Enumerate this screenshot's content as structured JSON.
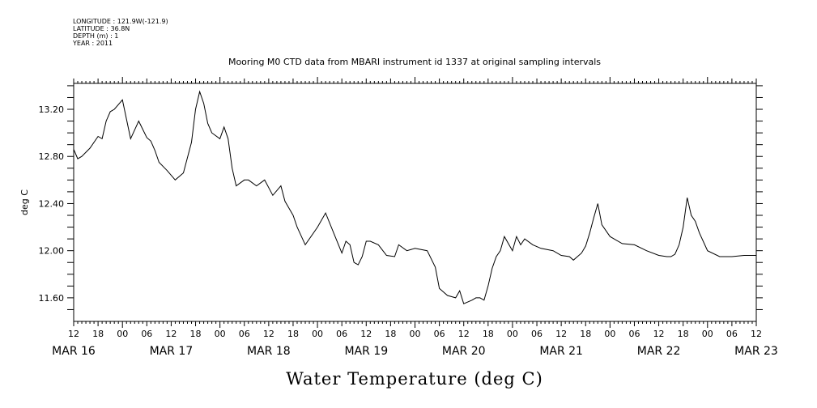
{
  "header": {
    "longitude": "LONGITUDE : 121.9W(-121.9)",
    "latitude": "LATITUDE : 36.8N",
    "depth": "DEPTH (m) : 1",
    "year": "YEAR : 2011"
  },
  "chart_data": {
    "type": "line",
    "title": "Mooring M0 CTD data from MBARI instrument id 1337 at original sampling intervals",
    "xlabel": "Water Temperature (deg C)",
    "ylabel": "deg C",
    "ylim": [
      11.4,
      13.42
    ],
    "yticks": [
      "11.60",
      "12.00",
      "12.40",
      "12.80",
      "13.20"
    ],
    "xlim_hours": [
      0,
      168
    ],
    "hour_tick_labels": [
      "12",
      "18",
      "00",
      "06",
      "12",
      "18",
      "00",
      "06",
      "12",
      "18",
      "00",
      "06",
      "12",
      "18",
      "00",
      "06",
      "12",
      "18",
      "00",
      "06",
      "12",
      "18",
      "00",
      "06",
      "12",
      "18",
      "00",
      "06",
      "12"
    ],
    "date_labels": [
      "MAR 16",
      "MAR 17",
      "MAR 18",
      "MAR 19",
      "MAR 20",
      "MAR 21",
      "MAR 22",
      "MAR 23"
    ],
    "grid": false,
    "series": [
      {
        "x": [
          "2011-03-16 12:00",
          "2011-03-16 13:00",
          "2011-03-16 14:00",
          "2011-03-16 16:00",
          "2011-03-16 18:00",
          "2011-03-16 19:00",
          "2011-03-16 20:00",
          "2011-03-16 21:00",
          "2011-03-16 22:00",
          "2011-03-17 00:00",
          "2011-03-17 02:00",
          "2011-03-17 04:00",
          "2011-03-17 06:00",
          "2011-03-17 07:00",
          "2011-03-17 08:00",
          "2011-03-17 09:00",
          "2011-03-17 11:00",
          "2011-03-17 13:00",
          "2011-03-17 15:00",
          "2011-03-17 17:00",
          "2011-03-17 18:00",
          "2011-03-17 19:00",
          "2011-03-17 20:00",
          "2011-03-17 21:00",
          "2011-03-17 22:00",
          "2011-03-18 00:00",
          "2011-03-18 01:00",
          "2011-03-18 02:00",
          "2011-03-18 03:00",
          "2011-03-18 04:00",
          "2011-03-18 06:00",
          "2011-03-18 07:00",
          "2011-03-18 09:00",
          "2011-03-18 11:00",
          "2011-03-18 13:00",
          "2011-03-18 15:00",
          "2011-03-18 16:00",
          "2011-03-18 18:00",
          "2011-03-18 19:00",
          "2011-03-18 21:00",
          "2011-03-19 00:00",
          "2011-03-19 02:00",
          "2011-03-19 04:00",
          "2011-03-19 06:00",
          "2011-03-19 07:00",
          "2011-03-19 08:00",
          "2011-03-19 09:00",
          "2011-03-19 10:00",
          "2011-03-19 11:00",
          "2011-03-19 12:00",
          "2011-03-19 13:00",
          "2011-03-19 15:00",
          "2011-03-19 17:00",
          "2011-03-19 19:00",
          "2011-03-19 20:00",
          "2011-03-19 22:00",
          "2011-03-20 00:00",
          "2011-03-20 03:00",
          "2011-03-20 05:00",
          "2011-03-20 06:00",
          "2011-03-20 08:00",
          "2011-03-20 10:00",
          "2011-03-20 11:00",
          "2011-03-20 12:00",
          "2011-03-20 14:00",
          "2011-03-20 15:00",
          "2011-03-20 16:00",
          "2011-03-20 17:00",
          "2011-03-20 18:00",
          "2011-03-20 19:00",
          "2011-03-20 20:00",
          "2011-03-20 21:00",
          "2011-03-20 22:00",
          "2011-03-21 00:00",
          "2011-03-21 01:00",
          "2011-03-21 02:00",
          "2011-03-21 03:00",
          "2011-03-21 05:00",
          "2011-03-21 07:00",
          "2011-03-21 10:00",
          "2011-03-21 12:00",
          "2011-03-21 14:00",
          "2011-03-21 15:00",
          "2011-03-21 17:00",
          "2011-03-21 18:00",
          "2011-03-21 19:00",
          "2011-03-21 20:00",
          "2011-03-21 21:00",
          "2011-03-21 22:00",
          "2011-03-22 00:00",
          "2011-03-22 03:00",
          "2011-03-22 06:00",
          "2011-03-22 09:00",
          "2011-03-22 12:00",
          "2011-03-22 14:00",
          "2011-03-22 15:00",
          "2011-03-22 16:00",
          "2011-03-22 17:00",
          "2011-03-22 18:00",
          "2011-03-22 19:00",
          "2011-03-22 20:00",
          "2011-03-22 21:00",
          "2011-03-22 22:00",
          "2011-03-23 00:00",
          "2011-03-23 03:00",
          "2011-03-23 06:00",
          "2011-03-23 09:00",
          "2011-03-23 12:00"
        ],
        "values": [
          12.86,
          12.78,
          12.8,
          12.87,
          12.97,
          12.95,
          13.1,
          13.18,
          13.2,
          13.28,
          12.95,
          13.1,
          12.96,
          12.93,
          12.85,
          12.75,
          12.68,
          12.6,
          12.66,
          12.92,
          13.2,
          13.35,
          13.25,
          13.08,
          13.0,
          12.95,
          13.05,
          12.95,
          12.7,
          12.55,
          12.6,
          12.6,
          12.55,
          12.6,
          12.47,
          12.55,
          12.42,
          12.3,
          12.2,
          12.05,
          12.2,
          12.32,
          12.15,
          11.98,
          12.08,
          12.05,
          11.9,
          11.88,
          11.95,
          12.08,
          12.08,
          12.05,
          11.96,
          11.95,
          12.05,
          12.0,
          12.02,
          12.0,
          11.86,
          11.68,
          11.62,
          11.6,
          11.66,
          11.55,
          11.58,
          11.6,
          11.6,
          11.58,
          11.7,
          11.85,
          11.95,
          12.0,
          12.12,
          12.0,
          12.12,
          12.05,
          12.1,
          12.05,
          12.02,
          12.0,
          11.96,
          11.95,
          11.92,
          11.98,
          12.04,
          12.15,
          12.28,
          12.4,
          12.22,
          12.12,
          12.06,
          12.05,
          12.0,
          11.96,
          11.95,
          11.95,
          11.97,
          12.05,
          12.2,
          12.45,
          12.3,
          12.25,
          12.15,
          12.0,
          11.95,
          11.95,
          11.96,
          11.96
        ]
      }
    ]
  }
}
